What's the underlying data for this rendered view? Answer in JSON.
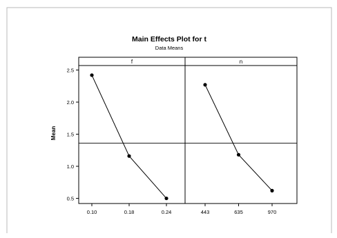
{
  "chart_data": {
    "type": "line",
    "title": "Main Effects Plot for t",
    "subtitle": "Data Means",
    "ylabel": "Mean",
    "ylim": [
      0.42,
      2.57
    ],
    "yticks": [
      0.5,
      1.0,
      1.5,
      2.0,
      2.5
    ],
    "ytick_labels": [
      "0.5",
      "1.0",
      "1.5",
      "2.0",
      "2.5"
    ],
    "overall_mean": 1.36,
    "grid": false,
    "panels": [
      {
        "name": "f",
        "categories": [
          "0.10",
          "0.18",
          "0.24"
        ],
        "values": [
          2.42,
          1.16,
          0.5
        ]
      },
      {
        "name": "n",
        "categories": [
          "443",
          "635",
          "970"
        ],
        "values": [
          2.27,
          1.18,
          0.62
        ]
      }
    ]
  },
  "colors": {
    "line": "#000000",
    "marker": "#000000",
    "frame": "#b9b9b9",
    "panel_border": "#000000"
  }
}
